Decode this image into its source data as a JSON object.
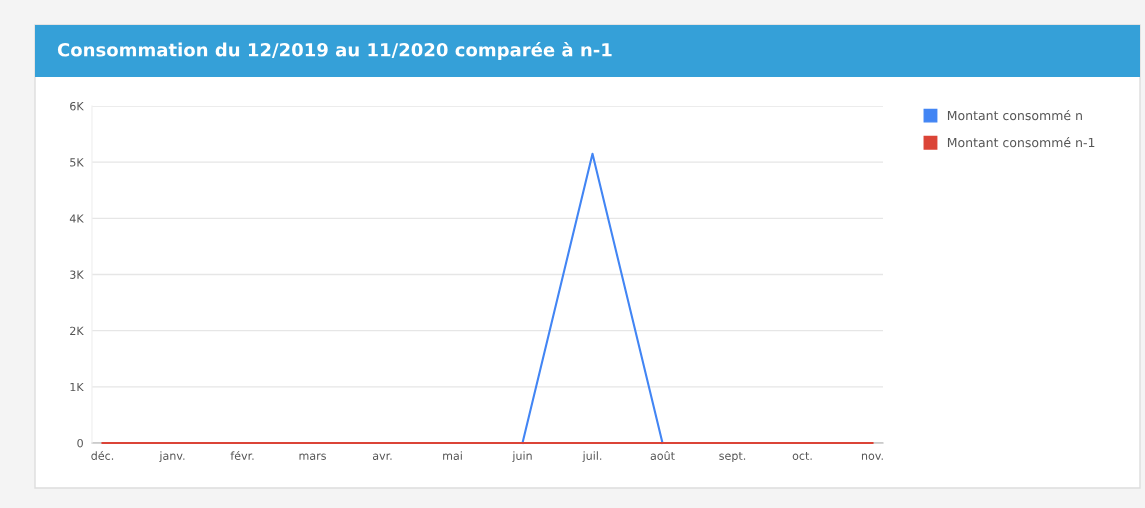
{
  "chart_data": {
    "type": "line",
    "title": "Consommation du 12/2019 au 11/2020 comparée à n-1",
    "categories": [
      "déc.",
      "janv.",
      "févr.",
      "mars",
      "avr.",
      "mai",
      "juin",
      "juil.",
      "août",
      "sept.",
      "oct.",
      "nov."
    ],
    "series": [
      {
        "name": "Montant consommé n",
        "color": "#4285f4",
        "values": [
          null,
          null,
          null,
          null,
          null,
          null,
          0,
          5150,
          0,
          null,
          null,
          null
        ]
      },
      {
        "name": "Montant consommé n-1",
        "color": "#db4437",
        "values": [
          0,
          0,
          0,
          0,
          0,
          0,
          0,
          0,
          0,
          0,
          0,
          0
        ]
      }
    ],
    "ylim": [
      0,
      6000
    ],
    "yticks": [
      0,
      {
        "value": 1000,
        "label": "1K"
      },
      {
        "value": 2000,
        "label": "2K"
      },
      {
        "value": 3000,
        "label": "3K"
      },
      {
        "value": 4000,
        "label": "4K"
      },
      {
        "value": 5000,
        "label": "5K"
      },
      {
        "value": 6000,
        "label": "6K"
      }
    ],
    "grid": "y",
    "legend": "top right",
    "marker": "none",
    "line_style": "solid"
  }
}
